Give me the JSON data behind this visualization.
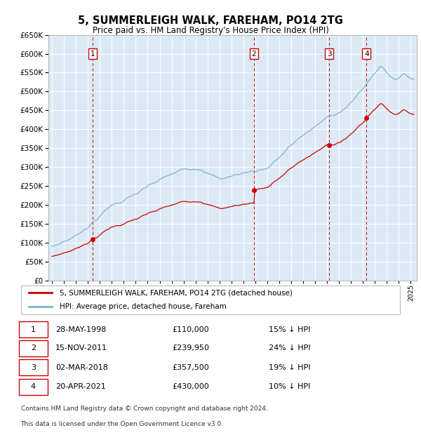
{
  "title": "5, SUMMERLEIGH WALK, FAREHAM, PO14 2TG",
  "subtitle": "Price paid vs. HM Land Registry's House Price Index (HPI)",
  "ylim": [
    0,
    650000
  ],
  "yticks": [
    0,
    50000,
    100000,
    150000,
    200000,
    250000,
    300000,
    350000,
    400000,
    450000,
    500000,
    550000,
    600000,
    650000
  ],
  "xlim_start": 1994.7,
  "xlim_end": 2025.5,
  "bg_color": "#dce9f5",
  "transactions": [
    {
      "num": 1,
      "date": "28-MAY-1998",
      "price": 110000,
      "year": 1998.41,
      "pct": "15% ↓ HPI"
    },
    {
      "num": 2,
      "date": "15-NOV-2011",
      "price": 239950,
      "year": 2011.88,
      "pct": "24% ↓ HPI"
    },
    {
      "num": 3,
      "date": "02-MAR-2018",
      "price": 357500,
      "year": 2018.17,
      "pct": "19% ↓ HPI"
    },
    {
      "num": 4,
      "date": "20-APR-2021",
      "price": 430000,
      "year": 2021.3,
      "pct": "10% ↓ HPI"
    }
  ],
  "legend_property": "5, SUMMERLEIGH WALK, FAREHAM, PO14 2TG (detached house)",
  "legend_hpi": "HPI: Average price, detached house, Fareham",
  "footer_line1": "Contains HM Land Registry data © Crown copyright and database right 2024.",
  "footer_line2": "This data is licensed under the Open Government Licence v3.0.",
  "property_color": "#cc0000",
  "hpi_color": "#7bafd4",
  "vline_color": "#cc0000",
  "box_color": "#cc0000",
  "grid_color": "#ffffff"
}
